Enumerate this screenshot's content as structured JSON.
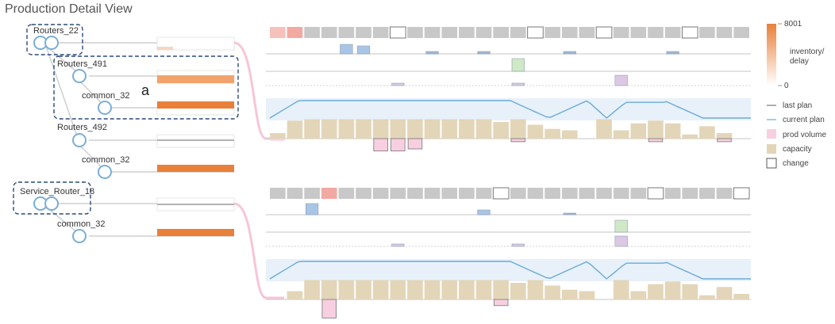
{
  "title": "Production Detail View",
  "annotation": "a",
  "colors": {
    "node": "#7aaed6",
    "line": "#c8c8c8",
    "dash": "#2b4a7a",
    "inventory": "#e8803a",
    "link": "#f7c5d8",
    "cell": "#c8c8c8",
    "cellHot": "#f1a9a2",
    "demand": "#a9c5e6",
    "plan": "#6aaad8",
    "planBand": "#e8f1fa",
    "capacity": "#e3d5b8",
    "prod": "#f7cfe0",
    "green": "#cfe9c6",
    "purple": "#dcc8e5"
  },
  "tree": [
    {
      "id": "Routers_22",
      "label": "Routers_22",
      "boxed": true
    },
    {
      "id": "Routers_491",
      "label": "Routers_491",
      "boxed": false
    },
    {
      "id": "common_32_a",
      "label": "common_32",
      "boxed": false
    },
    {
      "id": "Routers_492",
      "label": "Routers_492",
      "boxed": false
    },
    {
      "id": "common_32_b",
      "label": "common_32",
      "boxed": false
    },
    {
      "id": "Service_Router_18",
      "label": "Service_Router_18",
      "boxed": true
    },
    {
      "id": "common_32_c",
      "label": "common_32",
      "boxed": false
    }
  ],
  "legend": {
    "scale_max": "8001",
    "scale_min": "0",
    "scale_label_1": "inventory/",
    "scale_label_2": "delay",
    "items": [
      {
        "key": "last",
        "label": "last plan"
      },
      {
        "key": "current",
        "label": "current plan"
      },
      {
        "key": "prod",
        "label": "prod volume"
      },
      {
        "key": "capacity",
        "label": "capacity"
      },
      {
        "key": "change",
        "label": "change"
      }
    ]
  },
  "panels": [
    {
      "cells": [
        0.35,
        0.5,
        0,
        0,
        0,
        0,
        0,
        -1,
        0,
        0,
        0,
        0,
        0,
        0,
        0,
        -1,
        0,
        0,
        0,
        -1,
        0,
        0,
        0,
        0,
        -1,
        0,
        0,
        0
      ],
      "capacity": [
        0.2,
        0.65,
        0.7,
        0.7,
        0.7,
        0.7,
        0.7,
        0.7,
        0.7,
        0.7,
        0.7,
        0.7,
        0.7,
        0.6,
        0.7,
        0.5,
        0.35,
        0.3,
        0.0,
        0.7,
        0.3,
        0.55,
        0.65,
        0.55,
        0.15,
        0.45,
        0.2,
        0.0
      ],
      "prod": [
        0.1,
        0,
        0,
        0,
        0,
        0,
        0.6,
        0.6,
        0.5,
        0,
        0,
        0,
        0,
        0,
        0.15,
        0,
        0,
        0,
        0,
        0,
        0,
        0,
        0.15,
        0,
        0,
        0,
        0.15,
        0
      ]
    },
    {
      "cells": [
        0,
        0,
        0,
        0.55,
        0,
        0,
        0,
        0,
        0,
        0,
        0,
        0,
        0,
        -1,
        0,
        0,
        0,
        0,
        0,
        0,
        0,
        0,
        -1,
        0,
        0,
        0,
        0,
        -1
      ],
      "capacity": [
        0.0,
        0.3,
        0.7,
        0.7,
        0.7,
        0.7,
        0.7,
        0.7,
        0.7,
        0.7,
        0.7,
        0.7,
        0.7,
        0.7,
        0.6,
        0.7,
        0.5,
        0.35,
        0.3,
        0.0,
        0.7,
        0.3,
        0.55,
        0.65,
        0.55,
        0.15,
        0.45,
        0.2
      ],
      "prod": [
        0,
        0,
        0,
        0.9,
        0,
        0,
        0,
        0,
        0,
        0,
        0,
        0,
        0,
        0.3,
        0,
        0,
        0,
        0,
        0,
        0,
        0,
        0,
        0,
        0,
        0,
        0,
        0,
        0
      ]
    }
  ]
}
